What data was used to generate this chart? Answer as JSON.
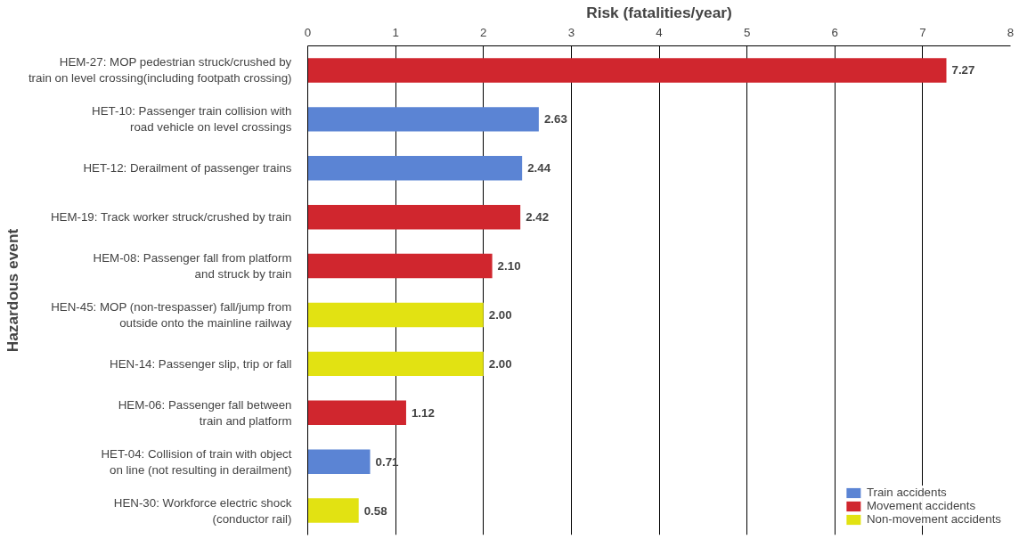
{
  "chart_data": {
    "type": "bar",
    "orientation": "horizontal",
    "xlabel": "Risk (fatalities/year)",
    "ylabel": "Hazardous event",
    "categories": [
      "HEM-27: MOP pedestrian struck/crushed by\ntrain on level crossing(including footpath crossing)",
      "HET-10: Passenger train collision with\nroad vehicle on level crossings",
      "HET-12: Derailment of passenger trains",
      "HEM-19: Track worker struck/crushed by train",
      "HEM-08: Passenger fall from platform\nand struck by train",
      "HEN-45: MOP (non-trespasser) fall/jump from\noutside onto the mainline railway",
      "HEN-14: Passenger slip, trip or fall",
      "HEM-06: Passenger fall between\ntrain and platform",
      "HET-04: Collision of train with object\non line (not resulting in derailment)",
      "HEN-30: Workforce electric shock\n(conductor rail)"
    ],
    "series": [
      {
        "name": "Train accidents",
        "color": "#5b84d4",
        "values": [
          null,
          2.63,
          2.44,
          null,
          null,
          null,
          null,
          null,
          0.71,
          null
        ],
        "value_labels": [
          null,
          "2.63",
          "2.44",
          null,
          null,
          null,
          null,
          null,
          "0.71",
          null
        ]
      },
      {
        "name": "Movement accidents",
        "color": "#d0262e",
        "values": [
          7.27,
          null,
          null,
          2.42,
          2.1,
          null,
          null,
          1.12,
          null,
          null
        ],
        "value_labels": [
          "7.27",
          null,
          null,
          "2.42",
          "2.10",
          null,
          null,
          "1.12",
          null,
          null
        ]
      },
      {
        "name": "Non-movement accidents",
        "color": "#e2e212",
        "values": [
          null,
          null,
          null,
          null,
          null,
          2.0,
          2.0,
          null,
          null,
          0.58
        ],
        "value_labels": [
          null,
          null,
          null,
          null,
          null,
          "2.00",
          "2.00",
          null,
          null,
          "0.58"
        ]
      }
    ],
    "xlim": [
      0,
      8
    ],
    "xticks": [
      0,
      1,
      2,
      3,
      4,
      5,
      6,
      7,
      8
    ],
    "grid": "x",
    "legend": "bottom right"
  }
}
